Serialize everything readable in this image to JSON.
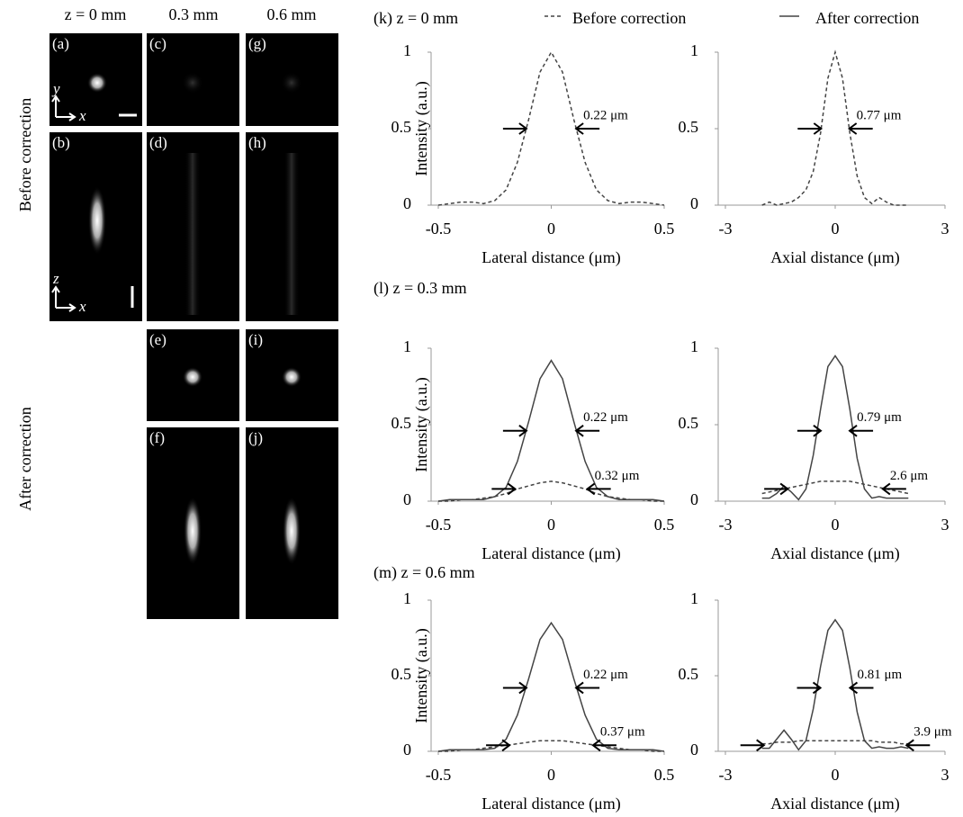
{
  "image_panels": {
    "column_headers": [
      "z = 0 mm",
      "0.3 mm",
      "0.6 mm"
    ],
    "row_labels": [
      "Before correction",
      "After correction"
    ],
    "labels": [
      "(a)",
      "(b)",
      "(c)",
      "(d)",
      "(e)",
      "(f)",
      "(g)",
      "(h)",
      "(i)",
      "(j)"
    ],
    "axis_labels": [
      "y",
      "x",
      "z",
      "x"
    ]
  },
  "chart_data": [
    {
      "type": "line",
      "title": "(k) z = 0 mm",
      "x_label": "Lateral distance (μm)",
      "y_label": "Intensity (a.u.)",
      "x": [
        -0.5,
        -0.45,
        -0.4,
        -0.35,
        -0.3,
        -0.25,
        -0.2,
        -0.15,
        -0.1,
        -0.05,
        0,
        0.05,
        0.1,
        0.15,
        0.2,
        0.25,
        0.3,
        0.35,
        0.4,
        0.45,
        0.5
      ],
      "series": [
        {
          "name": "Before correction",
          "color": "#444444",
          "dashed": true,
          "values": [
            0,
            0.01,
            0.02,
            0.02,
            0.01,
            0.03,
            0.1,
            0.28,
            0.56,
            0.87,
            1,
            0.87,
            0.56,
            0.28,
            0.1,
            0.03,
            0.01,
            0.02,
            0.02,
            0.01,
            0
          ]
        }
      ],
      "xlim": [
        -0.5,
        0.5
      ],
      "ylim": [
        0,
        1
      ],
      "xticks": [
        -0.5,
        0,
        0.5
      ],
      "yticks": [
        0,
        0.5,
        1
      ],
      "annotations": [
        {
          "text": "0.22 μm",
          "x": 0.11,
          "y": 0.5
        }
      ]
    },
    {
      "type": "line",
      "x_label": "Axial distance (μm)",
      "x": [
        -2,
        -1.8,
        -1.6,
        -1.4,
        -1.2,
        -1,
        -0.8,
        -0.6,
        -0.4,
        -0.2,
        0,
        0.2,
        0.4,
        0.6,
        0.8,
        1,
        1.2,
        1.4,
        1.6,
        1.8,
        2
      ],
      "series": [
        {
          "name": "Before correction",
          "color": "#444444",
          "dashed": true,
          "values": [
            0,
            0.02,
            0,
            0.01,
            0.02,
            0.05,
            0.1,
            0.22,
            0.47,
            0.83,
            1,
            0.83,
            0.47,
            0.19,
            0.05,
            0.01,
            0.05,
            0.02,
            0,
            0,
            0
          ]
        }
      ],
      "xlim": [
        -3,
        3
      ],
      "ylim": [
        0,
        1
      ],
      "xticks": [
        -3,
        0,
        3
      ],
      "yticks": [
        0,
        0.5,
        1
      ],
      "annotations": [
        {
          "text": "0.77 μm",
          "x": 0.385,
          "y": 0.5
        }
      ]
    },
    {
      "type": "line",
      "title": "(l) z = 0.3 mm",
      "x_label": "Lateral distance (μm)",
      "y_label": "Intensity (a.u.)",
      "x": [
        -0.5,
        -0.45,
        -0.4,
        -0.35,
        -0.3,
        -0.25,
        -0.2,
        -0.15,
        -0.1,
        -0.05,
        0,
        0.05,
        0.1,
        0.15,
        0.2,
        0.25,
        0.3,
        0.35,
        0.4,
        0.45,
        0.5
      ],
      "series": [
        {
          "name": "Before correction",
          "color": "#444444",
          "dashed": true,
          "values": [
            0,
            0,
            0.01,
            0.01,
            0.02,
            0.03,
            0.05,
            0.08,
            0.1,
            0.12,
            0.13,
            0.12,
            0.1,
            0.08,
            0.05,
            0.03,
            0.02,
            0.01,
            0.01,
            0,
            0
          ]
        },
        {
          "name": "After correction",
          "color": "#444444",
          "dashed": false,
          "values": [
            0,
            0.01,
            0.01,
            0.01,
            0.01,
            0.03,
            0.09,
            0.26,
            0.52,
            0.8,
            0.92,
            0.8,
            0.52,
            0.26,
            0.09,
            0.03,
            0.01,
            0.01,
            0.01,
            0.01,
            0
          ]
        }
      ],
      "xlim": [
        -0.5,
        0.5
      ],
      "ylim": [
        0,
        1
      ],
      "xticks": [
        -0.5,
        0,
        0.5
      ],
      "yticks": [
        0,
        0.5,
        1
      ],
      "annotations": [
        {
          "text": "0.22 μm",
          "x": 0.11,
          "y": 0.46
        },
        {
          "text": "0.32 μm",
          "x": 0.16,
          "y": 0.08
        }
      ]
    },
    {
      "type": "line",
      "x_label": "Axial distance (μm)",
      "x": [
        -2,
        -1.8,
        -1.6,
        -1.4,
        -1.2,
        -1,
        -0.8,
        -0.6,
        -0.4,
        -0.2,
        0,
        0.2,
        0.4,
        0.6,
        0.8,
        1,
        1.2,
        1.4,
        1.6,
        1.8,
        2
      ],
      "series": [
        {
          "name": "Before correction",
          "color": "#444444",
          "dashed": true,
          "values": [
            0.05,
            0.06,
            0.07,
            0.08,
            0.09,
            0.1,
            0.11,
            0.12,
            0.13,
            0.13,
            0.13,
            0.13,
            0.13,
            0.12,
            0.11,
            0.1,
            0.09,
            0.08,
            0.07,
            0.06,
            0.05
          ]
        },
        {
          "name": "After correction",
          "color": "#444444",
          "dashed": false,
          "values": [
            0.02,
            0.02,
            0.05,
            0.1,
            0.06,
            0.01,
            0.08,
            0.3,
            0.6,
            0.88,
            0.95,
            0.88,
            0.6,
            0.28,
            0.08,
            0.02,
            0.03,
            0.02,
            0.02,
            0.02,
            0.02
          ]
        }
      ],
      "xlim": [
        -3,
        3
      ],
      "ylim": [
        0,
        1
      ],
      "xticks": [
        -3,
        0,
        3
      ],
      "yticks": [
        0,
        0.5,
        1
      ],
      "annotations": [
        {
          "text": "0.79 μm",
          "x": 0.395,
          "y": 0.46
        },
        {
          "text": "2.6 μm",
          "x": 1.3,
          "y": 0.08
        }
      ]
    },
    {
      "type": "line",
      "title": "(m) z = 0.6 mm",
      "x_label": "Lateral distance (μm)",
      "y_label": "Intensity (a.u.)",
      "x": [
        -0.5,
        -0.45,
        -0.4,
        -0.35,
        -0.3,
        -0.25,
        -0.2,
        -0.15,
        -0.1,
        -0.05,
        0,
        0.05,
        0.1,
        0.15,
        0.2,
        0.25,
        0.3,
        0.35,
        0.4,
        0.45,
        0.5
      ],
      "series": [
        {
          "name": "Before correction",
          "color": "#444444",
          "dashed": true,
          "values": [
            0,
            0,
            0.01,
            0.01,
            0.02,
            0.03,
            0.04,
            0.05,
            0.06,
            0.07,
            0.07,
            0.07,
            0.06,
            0.05,
            0.04,
            0.03,
            0.02,
            0.01,
            0.01,
            0,
            0
          ]
        },
        {
          "name": "After correction",
          "color": "#444444",
          "dashed": false,
          "values": [
            0,
            0.01,
            0.01,
            0.01,
            0.01,
            0.02,
            0.08,
            0.24,
            0.48,
            0.74,
            0.85,
            0.74,
            0.48,
            0.24,
            0.08,
            0.02,
            0.01,
            0.01,
            0.01,
            0.01,
            0
          ]
        }
      ],
      "xlim": [
        -0.5,
        0.5
      ],
      "ylim": [
        0,
        1
      ],
      "xticks": [
        -0.5,
        0,
        0.5
      ],
      "yticks": [
        0,
        0.5,
        1
      ],
      "annotations": [
        {
          "text": "0.22 μm",
          "x": 0.11,
          "y": 0.42
        },
        {
          "text": "0.37 μm",
          "x": 0.185,
          "y": 0.04
        }
      ]
    },
    {
      "type": "line",
      "x_label": "Axial distance (μm)",
      "x": [
        -2,
        -1.8,
        -1.6,
        -1.4,
        -1.2,
        -1,
        -0.8,
        -0.6,
        -0.4,
        -0.2,
        0,
        0.2,
        0.4,
        0.6,
        0.8,
        1,
        1.2,
        1.4,
        1.6,
        1.8,
        2
      ],
      "series": [
        {
          "name": "Before correction",
          "color": "#444444",
          "dashed": true,
          "values": [
            0.05,
            0.05,
            0.06,
            0.06,
            0.06,
            0.07,
            0.07,
            0.07,
            0.07,
            0.07,
            0.07,
            0.07,
            0.07,
            0.07,
            0.07,
            0.07,
            0.06,
            0.06,
            0.06,
            0.05,
            0.05
          ]
        },
        {
          "name": "After correction",
          "color": "#444444",
          "dashed": false,
          "values": [
            0.02,
            0.02,
            0.08,
            0.14,
            0.08,
            0.01,
            0.07,
            0.28,
            0.56,
            0.8,
            0.87,
            0.8,
            0.55,
            0.26,
            0.07,
            0.02,
            0.03,
            0.02,
            0.02,
            0.03,
            0.02
          ]
        }
      ],
      "xlim": [
        -3,
        3
      ],
      "ylim": [
        0,
        1
      ],
      "xticks": [
        -3,
        0,
        3
      ],
      "yticks": [
        0,
        0.5,
        1
      ],
      "annotations": [
        {
          "text": "0.81 μm",
          "x": 0.405,
          "y": 0.42
        },
        {
          "text": "3.9 μm",
          "x": 1.95,
          "y": 0.04
        }
      ]
    }
  ]
}
